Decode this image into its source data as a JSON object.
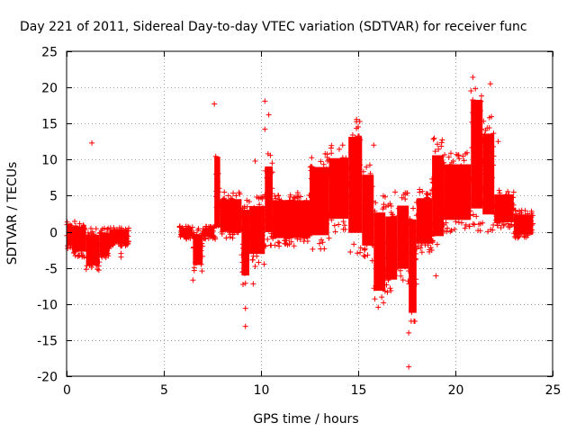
{
  "chart_data": {
    "type": "scatter",
    "title": "Day 221 of 2011, Sidereal Day-to-day VTEC variation (SDTVAR) for receiver func",
    "xlabel": "GPS time / hours",
    "ylabel": "SDTVAR / TECUs",
    "xlim": [
      0,
      25
    ],
    "ylim": [
      -20,
      25
    ],
    "xticks": [
      0,
      5,
      10,
      15,
      20,
      25
    ],
    "yticks": [
      -20,
      -15,
      -10,
      -5,
      0,
      5,
      10,
      15,
      20,
      25
    ],
    "grid": true,
    "marker": "+",
    "color": "#ff0000",
    "series": [
      {
        "name": "SDTVAR",
        "bands": [
          {
            "x": [
              0.0,
              0.3
            ],
            "low": -2.5,
            "high": 1.8
          },
          {
            "x": [
              0.3,
              1.0
            ],
            "low": -3.5,
            "high": 1.5
          },
          {
            "x": [
              1.0,
              1.7
            ],
            "low": -5.5,
            "high": 0.5
          },
          {
            "x": [
              1.7,
              2.2
            ],
            "low": -4.0,
            "high": 0.5
          },
          {
            "x": [
              2.2,
              3.2
            ],
            "low": -2.0,
            "high": 0.8
          },
          {
            "x": [
              5.8,
              6.5
            ],
            "low": -1.0,
            "high": 0.8
          },
          {
            "x": [
              6.5,
              7.0
            ],
            "low": -5.5,
            "high": 0.5
          },
          {
            "x": [
              7.0,
              7.6
            ],
            "low": -1.0,
            "high": 0.8
          },
          {
            "x": [
              7.6,
              7.9
            ],
            "low": -1.5,
            "high": 12.5
          },
          {
            "x": [
              7.9,
              9.0
            ],
            "low": -1.0,
            "high": 5.5
          },
          {
            "x": [
              9.0,
              9.4
            ],
            "low": -8.0,
            "high": 5.0
          },
          {
            "x": [
              9.4,
              10.2
            ],
            "low": -4.5,
            "high": 5.0
          },
          {
            "x": [
              10.2,
              10.6
            ],
            "low": -2.0,
            "high": 11.0
          },
          {
            "x": [
              10.6,
              12.5
            ],
            "low": -2.0,
            "high": 5.5
          },
          {
            "x": [
              12.5,
              13.5
            ],
            "low": -2.5,
            "high": 11.0
          },
          {
            "x": [
              13.5,
              14.5
            ],
            "low": 0.0,
            "high": 12.0
          },
          {
            "x": [
              14.5,
              15.2
            ],
            "low": -3.0,
            "high": 16.0
          },
          {
            "x": [
              15.2,
              15.8
            ],
            "low": -4.0,
            "high": 10.0
          },
          {
            "x": [
              15.8,
              16.4
            ],
            "low": -10.5,
            "high": 5.0
          },
          {
            "x": [
              16.4,
              17.0
            ],
            "low": -8.5,
            "high": 4.0
          },
          {
            "x": [
              17.0,
              17.6
            ],
            "low": -7.0,
            "high": 5.5
          },
          {
            "x": [
              17.6,
              18.0
            ],
            "low": -14.0,
            "high": 4.5
          },
          {
            "x": [
              18.0,
              18.8
            ],
            "low": -3.0,
            "high": 6.0
          },
          {
            "x": [
              18.8,
              19.4
            ],
            "low": -3.0,
            "high": 13.0
          },
          {
            "x": [
              19.4,
              20.8
            ],
            "low": 0.0,
            "high": 11.0
          },
          {
            "x": [
              20.8,
              21.4
            ],
            "low": 0.0,
            "high": 21.5
          },
          {
            "x": [
              21.4,
              22.0
            ],
            "low": 0.0,
            "high": 16.0
          },
          {
            "x": [
              22.0,
              23.0
            ],
            "low": 0.5,
            "high": 6.0
          },
          {
            "x": [
              23.0,
              24.0
            ],
            "low": -1.0,
            "high": 3.0
          }
        ],
        "points": [
          [
            1.3,
            12.3
          ],
          [
            7.6,
            17.7
          ],
          [
            10.2,
            18.1
          ],
          [
            10.4,
            16.2
          ],
          [
            10.2,
            14.2
          ],
          [
            9.7,
            9.8
          ],
          [
            9.2,
            -10.6
          ],
          [
            9.2,
            -13.1
          ],
          [
            9.6,
            -7.2
          ],
          [
            9.7,
            -4.8
          ],
          [
            6.5,
            -6.7
          ],
          [
            15.8,
            12.0
          ],
          [
            17.6,
            -18.7
          ],
          [
            17.6,
            -14.0
          ],
          [
            19.0,
            -6.1
          ],
          [
            2.8,
            -3.0
          ],
          [
            2.8,
            -3.5
          ],
          [
            16.9,
            5.5
          ],
          [
            13.3,
            10.8
          ],
          [
            14.2,
            12.0
          ],
          [
            22.2,
            12.5
          ],
          [
            21.8,
            20.5
          ],
          [
            20.9,
            21.4
          ]
        ]
      }
    ]
  }
}
